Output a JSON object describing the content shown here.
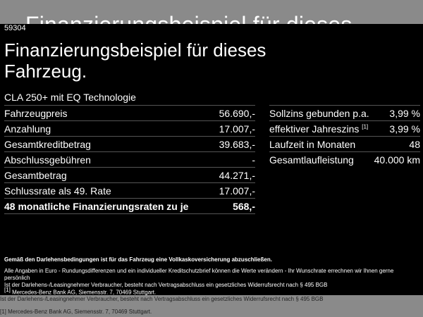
{
  "ghost": {
    "title": "Finanzierungsbeispiel für dieses",
    "line1": "Ist der Darlehens-/Leasingnehmer Verbraucher, besteht nach Vertragsabschluss ein gesetzliches Widerrufsrecht nach § 495 BGB",
    "line2": "[1] Mercedes-Benz Bank AG, Siemensstr. 7, 70469 Stuttgart."
  },
  "id": "59304",
  "title": "Finanzierungsbeispiel für dieses Fahrzeug.",
  "subtitle": "CLA 250+ mit EQ Technologie",
  "left_rows": [
    {
      "label": "Fahrzeugpreis",
      "value": "56.690,-"
    },
    {
      "label": "Anzahlung",
      "value": "17.007,-"
    },
    {
      "label": "Gesamtkreditbetrag",
      "value": "39.683,-"
    },
    {
      "label": "Abschlussgebühren",
      "value": "-"
    },
    {
      "label": "Gesamtbetrag",
      "value": "44.271,-"
    },
    {
      "label": "Schlussrate als 49. Rate",
      "value": "17.007,-"
    },
    {
      "label": "48 monatliche Finanzierungsraten zu je",
      "value": "568,-"
    }
  ],
  "right_rows": [
    {
      "label": "Sollzins gebunden p.a.",
      "value": "3,99 %"
    },
    {
      "label": "effektiver Jahreszins",
      "sup": "[1]",
      "value": "3,99 %"
    },
    {
      "label": "Laufzeit in Monaten",
      "value": "48"
    },
    {
      "label": "Gesamtlaufleistung",
      "value": "40.000 km"
    }
  ],
  "disclaimer": {
    "bold": "Gemäß den Darlehensbedingungen ist für das Fahrzeug eine Vollkaskoversicherung abzuschließen.",
    "line1": "Alle Angaben in Euro - Rundungsdifferenzen und ein individueller Kreditschutzbrief können die Werte verändern - Ihr Wunschrate errechnen wir Ihnen gerne persönlich",
    "line2": "Ist der Darlehens-/Leasingnehmer Verbraucher, besteht nach Vertragsabschluss ein gesetzliches Widerrufsrecht nach § 495 BGB",
    "footnote_mark": "[1]",
    "footnote": "Mercedes-Benz Bank AG, Siemensstr. 7, 70469 Stuttgart."
  }
}
